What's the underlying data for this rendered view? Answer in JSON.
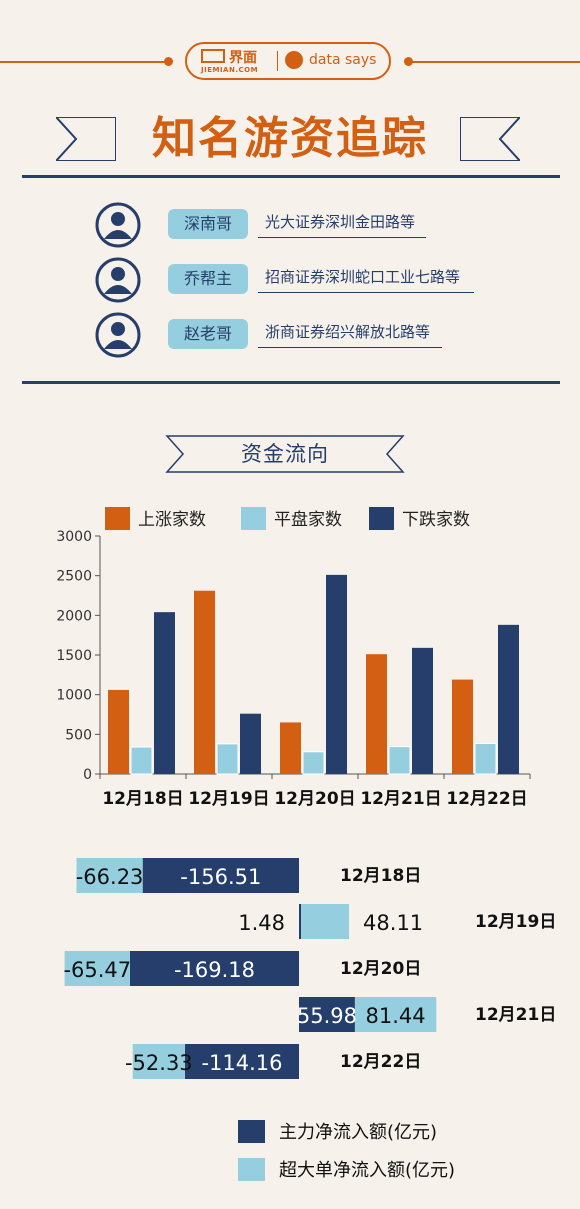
{
  "header": {
    "jiemian_cn": "界面",
    "jiemian_en": "JIEMIAN.COM",
    "datasays": "data says"
  },
  "title": "知名游资追踪",
  "traders": [
    {
      "name": "深南哥",
      "desc": "光大证券深圳金田路等"
    },
    {
      "name": "乔帮主",
      "desc": "招商证券深圳蛇口工业七路等"
    },
    {
      "name": "赵老哥",
      "desc": "浙商证券绍兴解放北路等"
    }
  ],
  "section_title": "资金流向",
  "colors": {
    "orange": "#d35f12",
    "light_blue": "#95cfdf",
    "navy": "#263e6b",
    "cream": "#f6f1ea"
  },
  "chart_data": [
    {
      "type": "bar",
      "categories": [
        "12月18日",
        "12月19日",
        "12月20日",
        "12月21日",
        "12月22日"
      ],
      "series": [
        {
          "name": "上涨家数",
          "values": [
            1060,
            2310,
            650,
            1510,
            1190
          ]
        },
        {
          "name": "平盘家数",
          "values": [
            340,
            380,
            280,
            345,
            385
          ]
        },
        {
          "name": "下跌家数",
          "values": [
            2040,
            760,
            2510,
            1590,
            1880
          ]
        }
      ],
      "yticks": [
        "0",
        "500",
        "1000",
        "1500",
        "2000",
        "2500",
        "3000"
      ],
      "ylim": [
        0,
        3000
      ],
      "legend": "top"
    },
    {
      "type": "bar",
      "orientation": "horizontal",
      "categories": [
        "12月18日",
        "12月19日",
        "12月20日",
        "12月21日",
        "12月22日"
      ],
      "series": [
        {
          "name": "主力净流入额(亿元)",
          "values": [
            -156.51,
            1.48,
            -169.18,
            55.98,
            -114.16
          ],
          "labels": [
            "-156.51",
            "1.48",
            "-169.18",
            "55.98",
            "-114.16"
          ]
        },
        {
          "name": "超大单净流入额(亿元)",
          "values": [
            -66.23,
            48.11,
            -65.47,
            81.44,
            -52.33
          ],
          "labels": [
            "-66.23",
            "48.11",
            "-65.47",
            "81.44",
            "-52.33"
          ]
        }
      ],
      "legend": "bottom"
    }
  ]
}
